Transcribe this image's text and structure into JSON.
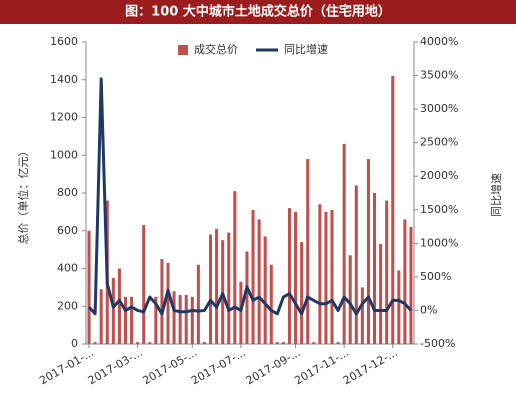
{
  "chart_data": {
    "type": "bar-line",
    "title": "图：100 大中城市土地成交总价（住宅用地）",
    "y_label": "总价（单位：亿元）",
    "y2_label": "同比增速",
    "categories": [
      "2017-01-...",
      null,
      null,
      null,
      null,
      null,
      null,
      null,
      "2017-03-...",
      null,
      null,
      null,
      null,
      null,
      null,
      null,
      null,
      "2017-05-...",
      null,
      null,
      null,
      null,
      null,
      null,
      null,
      "2017-07-...",
      null,
      null,
      null,
      null,
      null,
      null,
      null,
      null,
      "2017-09-...",
      null,
      null,
      null,
      null,
      null,
      null,
      null,
      "2017-11-...",
      null,
      null,
      null,
      null,
      null,
      null,
      null,
      "2017-12-...",
      null,
      null,
      null
    ],
    "series": [
      {
        "name": "成交总价",
        "color": "#c0504d",
        "values": [
          600,
          10,
          290,
          760,
          350,
          400,
          250,
          250,
          10,
          630,
          10,
          250,
          450,
          430,
          280,
          260,
          260,
          250,
          420,
          10,
          580,
          610,
          550,
          590,
          810,
          330,
          490,
          710,
          660,
          570,
          420,
          10,
          10,
          720,
          700,
          540,
          980,
          10,
          740,
          700,
          710,
          10,
          1060,
          470,
          840,
          300,
          980,
          800,
          530,
          760,
          1420,
          390,
          660,
          620
        ]
      },
      {
        "name": "同比增速",
        "color": "#1f3864",
        "axis": "y2",
        "values": [
          50,
          -50,
          3450,
          400,
          50,
          150,
          0,
          50,
          0,
          -20,
          200,
          100,
          -50,
          300,
          0,
          -20,
          -20,
          0,
          -10,
          0,
          150,
          50,
          250,
          0,
          50,
          0,
          350,
          150,
          200,
          100,
          0,
          -50,
          200,
          250,
          100,
          -50,
          200,
          150,
          100,
          100,
          150,
          0,
          200,
          100,
          -50,
          100,
          200,
          0,
          0,
          0,
          150,
          150,
          100,
          0
        ]
      }
    ],
    "ylim": [
      0,
      1600
    ],
    "yticks": [
      0,
      200,
      400,
      600,
      800,
      1000,
      1200,
      1400,
      1600
    ],
    "y2lim": [
      -500,
      4000
    ],
    "y2ticks": [
      {
        "value": -500,
        "label": "-500%"
      },
      {
        "value": 0,
        "label": "0%"
      },
      {
        "value": 500,
        "label": "500%"
      },
      {
        "value": 1000,
        "label": "1000%"
      },
      {
        "value": 1500,
        "label": "1500%"
      },
      {
        "value": 2000,
        "label": "2000%"
      },
      {
        "value": 2500,
        "label": "2500%"
      },
      {
        "value": 3000,
        "label": "3000%"
      },
      {
        "value": 3500,
        "label": "3500%"
      },
      {
        "value": 4000,
        "label": "4000%"
      }
    ]
  }
}
